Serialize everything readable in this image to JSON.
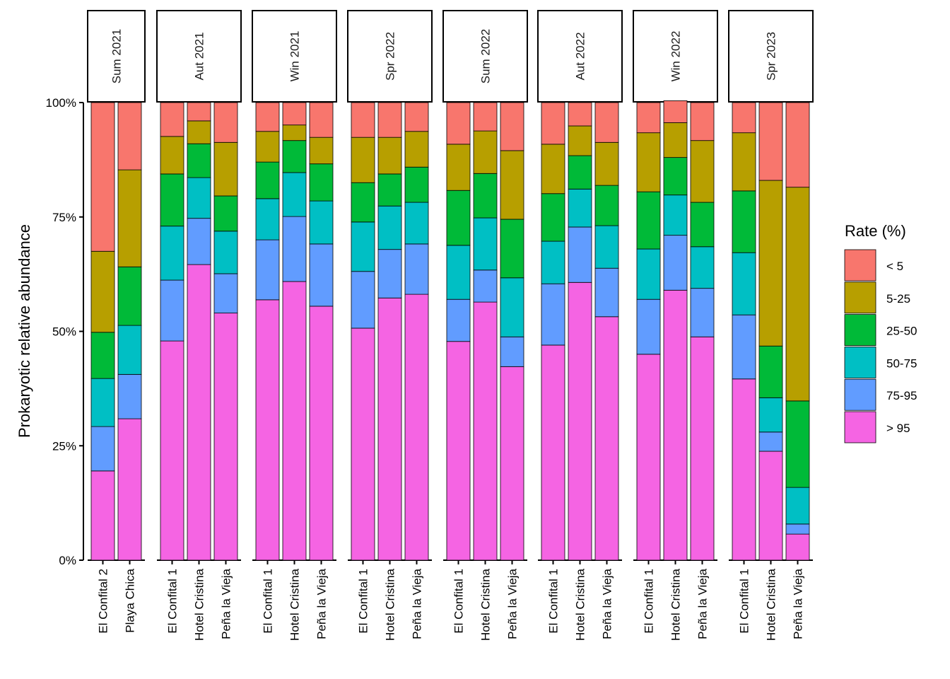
{
  "chart_data": {
    "type": "bar",
    "stacked": true,
    "ylabel": "Prokaryotic relative abundance",
    "xlabel": "",
    "ylim": [
      0,
      100
    ],
    "yticks": [
      "0%",
      "25%",
      "50%",
      "75%",
      "100%"
    ],
    "ytick_values": [
      0,
      25,
      50,
      75,
      100
    ],
    "legend": {
      "title": "Rate (%)",
      "position": "right",
      "entries": [
        "< 5",
        "5-25",
        "25-50",
        "50-75",
        "75-95",
        "> 95"
      ]
    },
    "series_colors": {
      "< 5": "#F8766D",
      "5-25": "#B79F00",
      "25-50": "#00BA38",
      "50-75": "#00BFC4",
      "75-95": "#619CFF",
      "> 95": "#F564E3"
    },
    "stack_order_bottom_to_top": [
      "> 95",
      "75-95",
      "50-75",
      "25-50",
      "5-25",
      "< 5"
    ],
    "panels": [
      {
        "label": "Sum 2021",
        "bars": [
          {
            "site": "El Confital 2",
            "values": {
              "> 95": 19.5,
              "75-95": 9.7,
              "50-75": 10.5,
              "25-50": 10.1,
              "5-25": 17.7,
              "< 5": 32.5
            }
          },
          {
            "site": "Playa Chica",
            "values": {
              "> 95": 30.9,
              "75-95": 9.7,
              "50-75": 10.7,
              "25-50": 12.8,
              "5-25": 21.2,
              "< 5": 14.7
            }
          }
        ]
      },
      {
        "label": "Aut 2021",
        "bars": [
          {
            "site": "El Confital 1",
            "values": {
              "> 95": 47.9,
              "75-95": 13.3,
              "50-75": 11.8,
              "25-50": 11.4,
              "5-25": 8.2,
              "< 5": 7.4
            }
          },
          {
            "site": "Hotel Cristina",
            "values": {
              "> 95": 64.6,
              "75-95": 10.1,
              "50-75": 8.9,
              "25-50": 7.4,
              "5-25": 5.0,
              "< 5": 4.0
            }
          },
          {
            "site": "Peña la Vieja",
            "values": {
              "> 95": 54.0,
              "75-95": 8.6,
              "50-75": 9.3,
              "25-50": 7.7,
              "5-25": 11.7,
              "< 5": 8.7
            }
          }
        ]
      },
      {
        "label": "Win 2021",
        "bars": [
          {
            "site": "El Confital 1",
            "values": {
              "> 95": 56.9,
              "75-95": 13.1,
              "50-75": 9.0,
              "25-50": 8.0,
              "5-25": 6.7,
              "< 5": 6.3
            }
          },
          {
            "site": "Hotel Cristina",
            "values": {
              "> 95": 60.9,
              "75-95": 14.2,
              "50-75": 9.6,
              "25-50": 7.0,
              "5-25": 3.4,
              "< 5": 4.9
            }
          },
          {
            "site": "Peña la Vieja",
            "values": {
              "> 95": 55.5,
              "75-95": 13.6,
              "50-75": 9.4,
              "25-50": 8.1,
              "5-25": 5.8,
              "< 5": 7.6
            }
          }
        ]
      },
      {
        "label": "Spr 2022",
        "bars": [
          {
            "site": "El Confital 1",
            "values": {
              "> 95": 50.7,
              "75-95": 12.4,
              "50-75": 10.8,
              "25-50": 8.6,
              "5-25": 9.9,
              "< 5": 7.6
            }
          },
          {
            "site": "Hotel Cristina",
            "values": {
              "> 95": 57.3,
              "75-95": 10.6,
              "50-75": 9.5,
              "25-50": 7.0,
              "5-25": 8.0,
              "< 5": 7.6
            }
          },
          {
            "site": "Peña la Vieja",
            "values": {
              "> 95": 58.1,
              "75-95": 11.0,
              "50-75": 9.1,
              "25-50": 7.7,
              "5-25": 7.8,
              "< 5": 6.3
            }
          }
        ]
      },
      {
        "label": "Sum 2022",
        "bars": [
          {
            "site": "El Confital 1",
            "values": {
              "> 95": 47.8,
              "75-95": 9.2,
              "50-75": 11.8,
              "25-50": 12.0,
              "5-25": 10.1,
              "< 5": 9.1
            }
          },
          {
            "site": "Hotel Cristina",
            "values": {
              "> 95": 56.4,
              "75-95": 7.0,
              "50-75": 11.4,
              "25-50": 9.7,
              "5-25": 9.3,
              "< 5": 6.2
            }
          },
          {
            "site": "Peña la Vieja",
            "values": {
              "> 95": 42.3,
              "75-95": 6.5,
              "50-75": 12.9,
              "25-50": 12.8,
              "5-25": 15.0,
              "< 5": 10.5
            }
          }
        ]
      },
      {
        "label": "Aut 2022",
        "bars": [
          {
            "site": "El Confital 1",
            "values": {
              "> 95": 47.0,
              "75-95": 13.4,
              "50-75": 9.3,
              "25-50": 10.4,
              "5-25": 10.8,
              "< 5": 9.1
            }
          },
          {
            "site": "Hotel Cristina",
            "values": {
              "> 95": 60.7,
              "75-95": 12.1,
              "50-75": 8.3,
              "25-50": 7.3,
              "5-25": 6.5,
              "< 5": 5.1
            }
          },
          {
            "site": "Peña la Vieja",
            "values": {
              "> 95": 53.2,
              "75-95": 10.6,
              "50-75": 9.3,
              "25-50": 8.8,
              "5-25": 9.4,
              "< 5": 8.7
            }
          }
        ]
      },
      {
        "label": "Win 2022",
        "bars": [
          {
            "site": "El Confital 1",
            "values": {
              "> 95": 45.0,
              "75-95": 12.0,
              "50-75": 11.0,
              "25-50": 12.5,
              "5-25": 12.9,
              "< 5": 6.6
            }
          },
          {
            "site": "Hotel Cristina",
            "values": {
              "> 95": 59.0,
              "75-95": 12.0,
              "50-75": 8.8,
              "25-50": 8.2,
              "5-25": 7.6,
              "< 5": 4.8
            }
          },
          {
            "site": "Peña la Vieja",
            "values": {
              "> 95": 48.8,
              "75-95": 10.6,
              "50-75": 9.1,
              "25-50": 9.7,
              "5-25": 13.5,
              "< 5": 8.3
            }
          }
        ]
      },
      {
        "label": "Spr 2023",
        "bars": [
          {
            "site": "El Confital 1",
            "values": {
              "> 95": 39.6,
              "75-95": 14.0,
              "50-75": 13.6,
              "25-50": 13.5,
              "5-25": 12.7,
              "< 5": 6.6
            }
          },
          {
            "site": "Hotel Cristina",
            "values": {
              "> 95": 23.8,
              "75-95": 4.2,
              "50-75": 7.5,
              "25-50": 11.3,
              "5-25": 36.2,
              "< 5": 17.0
            }
          },
          {
            "site": "Peña la Vieja",
            "values": {
              "> 95": 5.7,
              "75-95": 2.2,
              "50-75": 8.0,
              "25-50": 18.9,
              "5-25": 46.7,
              "< 5": 18.5
            }
          }
        ]
      }
    ]
  }
}
